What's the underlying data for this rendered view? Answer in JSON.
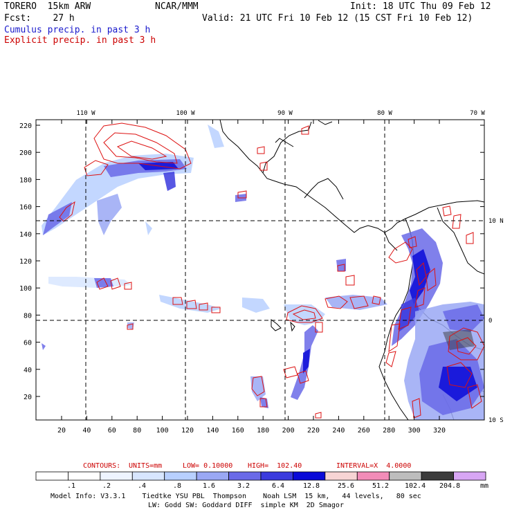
{
  "header": {
    "model": "TORERO  15km ARW",
    "org": "NCAR/MMM",
    "init": "Init: 18 UTC Thu 09 Feb 12",
    "fcst": "Fcst:    27 h",
    "valid": "Valid: 21 UTC Fri 10 Feb 12 (15 CST Fri 10 Feb 12)",
    "cumulus": "Cumulus precip. in past 3 h",
    "explicit": "Explicit precip. in past 3 h"
  },
  "map": {
    "lon_labels": [
      "110 W",
      "100 W",
      "90 W",
      "80 W",
      "70 W"
    ],
    "lat_labels": [
      "10 N",
      "0",
      "10 S"
    ],
    "y_ticks": [
      "220",
      "200",
      "180",
      "160",
      "140",
      "120",
      "100",
      "80",
      "60",
      "40",
      "20"
    ],
    "x_ticks": [
      "20",
      "40",
      "60",
      "80",
      "100",
      "120",
      "140",
      "160",
      "180",
      "200",
      "220",
      "240",
      "260",
      "280",
      "300",
      "320"
    ]
  },
  "contours": {
    "prefix": "CONTOURS:",
    "units": "UNITS=mm",
    "low": "LOW= 0.10000",
    "high": "HIGH=  102.40",
    "interval": "INTERVAL=X  4.0000"
  },
  "colorbar": {
    "labels": [
      ".1",
      ".2",
      ".4",
      ".8",
      "1.6",
      "3.2",
      "6.4",
      "12.8",
      "25.6",
      "51.2",
      "102.4",
      "204.8"
    ],
    "unit": "mm",
    "colors": [
      "#ffffff",
      "#ffffff",
      "#eef4ff",
      "#d8e6ff",
      "#b8d0ff",
      "#9aa8f4",
      "#6a6ae8",
      "#3a3ade",
      "#0a0ad8",
      "#f7d4d4",
      "#f28cb8",
      "#bdbdbd",
      "#3c3c3c",
      "#d8a6f4"
    ]
  },
  "footer": {
    "line1": "Model Info: V3.3.1    Tiedtke YSU PBL  Thompson    Noah LSM  15 km,   44 levels,   80 sec",
    "line2": "LW: Godd SW: Goddard DIFF  simple KM  2D Smagor"
  }
}
